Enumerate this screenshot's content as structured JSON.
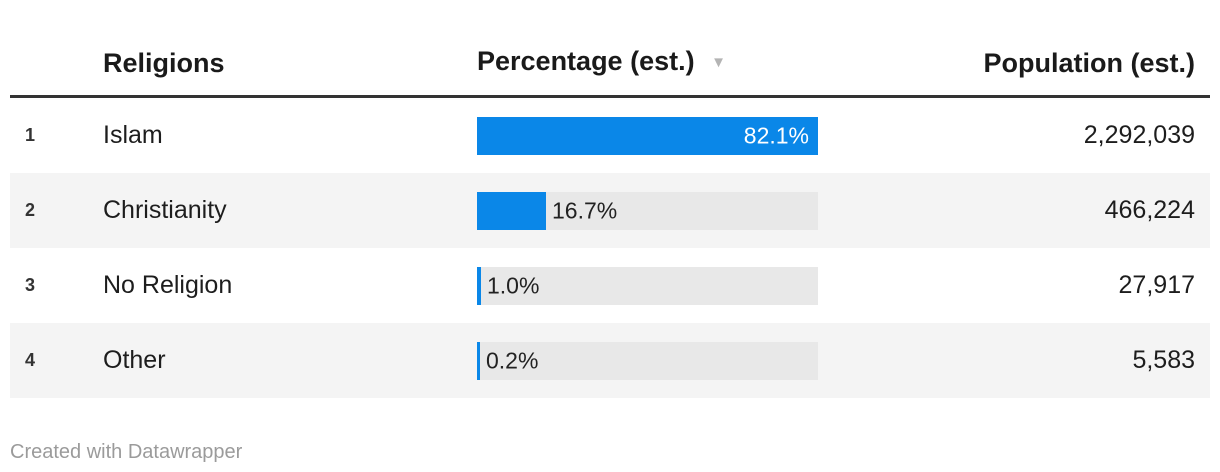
{
  "header": {
    "col_religions": "Religions",
    "col_percentage": "Percentage (est.)",
    "sort_icon": "▼",
    "col_population": "Population (est.)"
  },
  "rows": [
    {
      "rank": "1",
      "religion": "Islam",
      "percent": 82.1,
      "percent_label": "82.1%",
      "population": "2,292,039"
    },
    {
      "rank": "2",
      "religion": "Christianity",
      "percent": 16.7,
      "percent_label": "16.7%",
      "population": "466,224"
    },
    {
      "rank": "3",
      "religion": "No Religion",
      "percent": 1.0,
      "percent_label": "1.0%",
      "population": "27,917"
    },
    {
      "rank": "4",
      "religion": "Other",
      "percent": 0.2,
      "percent_label": "0.2%",
      "population": "5,583"
    }
  ],
  "footer": {
    "attribution": "Created with Datawrapper"
  },
  "colors": {
    "bar_blue": "#0a87e8",
    "bar_track": "#e8e8e8",
    "row_stripe": "#f4f4f4",
    "header_rule": "#333333",
    "footer_text": "#9b9b9b"
  },
  "chart_data": {
    "type": "bar",
    "orientation": "horizontal",
    "title": "",
    "xlabel": "",
    "ylabel": "",
    "categories": [
      "Islam",
      "Christianity",
      "No Religion",
      "Other"
    ],
    "series": [
      {
        "name": "Percentage (est.)",
        "values": [
          82.1,
          16.7,
          1.0,
          0.2
        ],
        "suffix": "%"
      },
      {
        "name": "Population (est.)",
        "values": [
          2292039,
          466224,
          27917,
          5583
        ]
      }
    ],
    "value_axis_max": 82.1,
    "sorted_by": "Percentage (est.)",
    "sort_order": "descending",
    "grid": false,
    "legend_position": "none"
  }
}
